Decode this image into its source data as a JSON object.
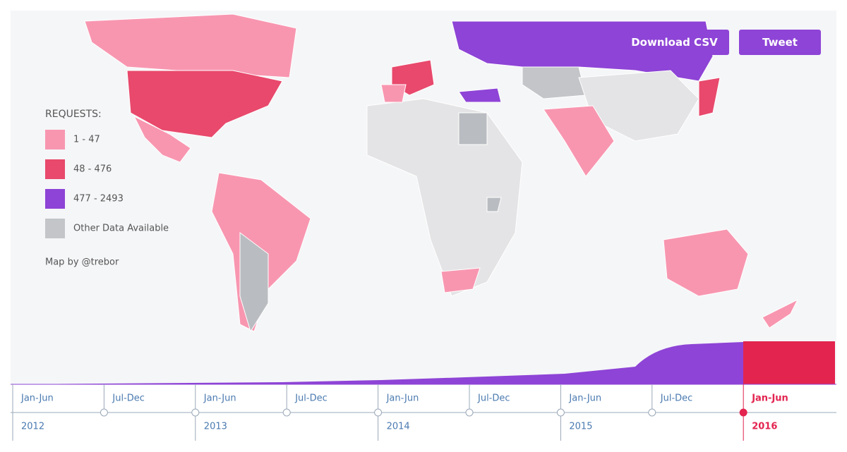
{
  "legend": {
    "title": "REQUESTS:",
    "items": [
      {
        "label": "1 - 47",
        "color": "#f896b0"
      },
      {
        "label": "48 - 476",
        "color": "#e8496c"
      },
      {
        "label": "477 - 2493",
        "color": "#8e44d6"
      },
      {
        "label": "Other Data Available",
        "color": "#c3c5c8"
      }
    ]
  },
  "credit": "Map by @trebor",
  "buttons": {
    "download": "Download CSV",
    "tweet": "Tweet"
  },
  "timeline": {
    "halves": [
      "Jan-Jun",
      "Jul-Dec",
      "Jan-Jun",
      "Jul-Dec",
      "Jan-Jun",
      "Jul-Dec",
      "Jan-Jun",
      "Jul-Dec",
      "Jan-Jun"
    ],
    "years": [
      "2012",
      "2013",
      "2014",
      "2015",
      "2016"
    ],
    "active_color": "#e3244f"
  }
}
